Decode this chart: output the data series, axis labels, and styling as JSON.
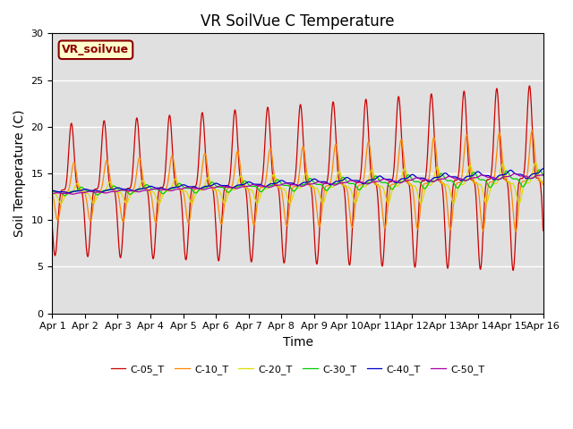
{
  "title": "VR SoilVue C Temperature",
  "xlabel": "Time",
  "ylabel": "Soil Temperature (C)",
  "ylim": [
    0,
    30
  ],
  "xlim": [
    0,
    15
  ],
  "background_color": "#e0e0e0",
  "figure_color": "#ffffff",
  "grid_color": "#ffffff",
  "annotation_text": "VR_soilvue",
  "annotation_color": "#8B0000",
  "annotation_bg": "#ffffcc",
  "series": [
    {
      "label": "C-05_T",
      "color": "#cc0000",
      "amp_start": 7.0,
      "amp_end": 10.0,
      "phase_lag": 0.0,
      "base_start": 13.2,
      "base_end": 14.5
    },
    {
      "label": "C-10_T",
      "color": "#ff8800",
      "amp_start": 3.0,
      "amp_end": 5.5,
      "phase_lag": 0.08,
      "base_start": 13.0,
      "base_end": 14.2
    },
    {
      "label": "C-20_T",
      "color": "#dddd00",
      "amp_start": 1.0,
      "amp_end": 2.2,
      "phase_lag": 0.18,
      "base_start": 12.8,
      "base_end": 14.0
    },
    {
      "label": "C-30_T",
      "color": "#00cc00",
      "amp_start": 0.4,
      "amp_end": 0.9,
      "phase_lag": 0.3,
      "base_start": 13.0,
      "base_end": 14.5
    },
    {
      "label": "C-40_T",
      "color": "#0000cc",
      "amp_start": 0.15,
      "amp_end": 0.5,
      "phase_lag": 0.42,
      "base_start": 13.0,
      "base_end": 15.0
    },
    {
      "label": "C-50_T",
      "color": "#aa00aa",
      "amp_start": 0.1,
      "amp_end": 0.3,
      "phase_lag": 0.55,
      "base_start": 12.8,
      "base_end": 14.8
    }
  ],
  "x_tick_labels": [
    "Apr 1",
    "Apr 2",
    "Apr 3",
    "Apr 4",
    "Apr 5",
    "Apr 6",
    "Apr 7",
    "Apr 8",
    "Apr 9",
    "Apr 10",
    "Apr 11",
    "Apr 12",
    "Apr 13",
    "Apr 14",
    "Apr 15",
    "Apr 16"
  ],
  "x_tick_positions": [
    0,
    1,
    2,
    3,
    4,
    5,
    6,
    7,
    8,
    9,
    10,
    11,
    12,
    13,
    14,
    15
  ],
  "sharpness": 4.0
}
